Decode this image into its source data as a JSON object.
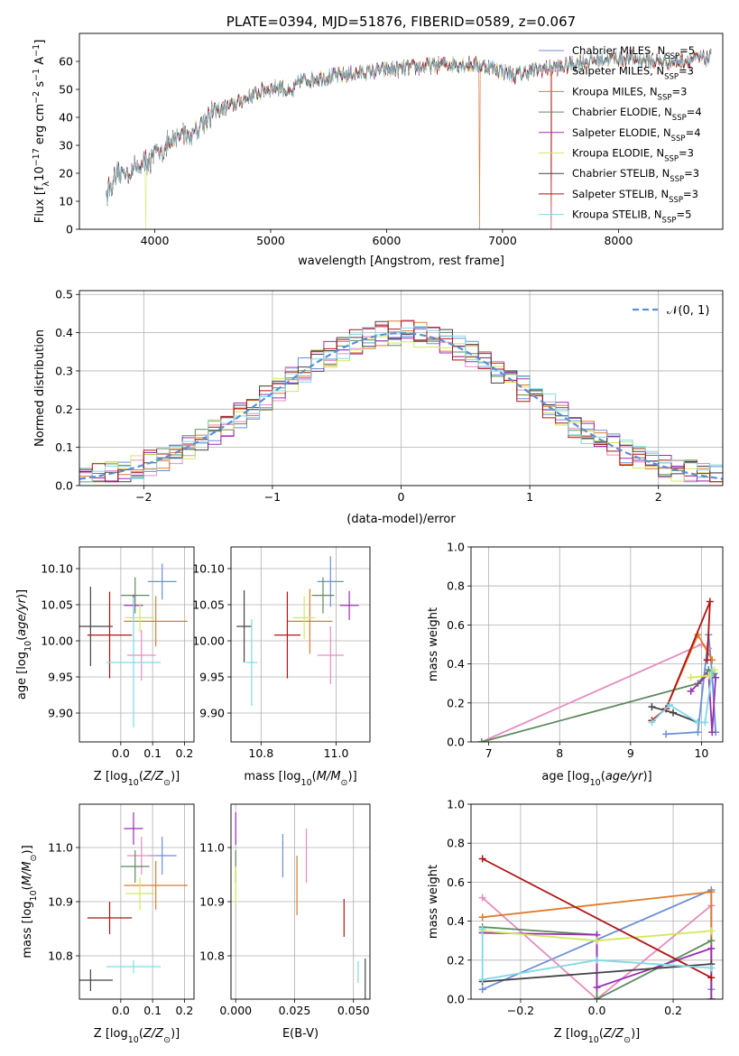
{
  "colors": {
    "Chabrier MILES": "#6b8fd6",
    "Salpeter MILES": "#e58cc0",
    "Kroupa MILES": "#e07b2a",
    "Chabrier ELODIE": "#5e8a5e",
    "Salpeter ELODIE": "#9a2fb2",
    "Kroupa ELODIE": "#d4e85a",
    "Chabrier STELIB": "#444444",
    "Salpeter STELIB": "#b01515",
    "Kroupa STELIB": "#7fd9e8",
    "normal": "#5b8fd4"
  },
  "chart_data": [
    {
      "type": "line",
      "title": "PLATE=0394, MJD=51876, FIBERID=0589, z=0.067",
      "xlabel": "wavelength [Angstrom, rest frame]",
      "ylabel": "Flux [f_λ 10^-17 erg cm^-2 s^-1 A^-1]",
      "xlim": [
        3350,
        8900
      ],
      "ylim": [
        0,
        70
      ],
      "xticks": [
        4000,
        5000,
        6000,
        7000,
        8000
      ],
      "yticks": [
        0,
        10,
        20,
        30,
        40,
        50,
        60
      ],
      "legend_position": "upper-right",
      "legend": [
        {
          "series": "Chabrier MILES",
          "prefix": "Chabrier MILES, N",
          "sub": "SSP",
          "suffix": "=5"
        },
        {
          "series": "Salpeter MILES",
          "prefix": "Salpeter MILES, N",
          "sub": "SSP",
          "suffix": "=3"
        },
        {
          "series": "Kroupa MILES",
          "prefix": "Kroupa MILES, N",
          "sub": "SSP",
          "suffix": "=3"
        },
        {
          "series": "Chabrier ELODIE",
          "prefix": "Chabrier ELODIE, N",
          "sub": "SSP",
          "suffix": "=4"
        },
        {
          "series": "Salpeter ELODIE",
          "prefix": "Salpeter ELODIE, N",
          "sub": "SSP",
          "suffix": "=4"
        },
        {
          "series": "Kroupa ELODIE",
          "prefix": "Kroupa ELODIE, N",
          "sub": "SSP",
          "suffix": "=3"
        },
        {
          "series": "Chabrier STELIB",
          "prefix": "Chabrier STELIB, N",
          "sub": "SSP",
          "suffix": "=3"
        },
        {
          "series": "Salpeter STELIB",
          "prefix": "Salpeter STELIB, N",
          "sub": "SSP",
          "suffix": "=3"
        },
        {
          "series": "Kroupa STELIB",
          "prefix": "Kroupa STELIB, N",
          "sub": "SSP",
          "suffix": "=5"
        }
      ],
      "continuum": [
        [
          3580,
          13
        ],
        [
          3700,
          20
        ],
        [
          3800,
          21
        ],
        [
          3900,
          24
        ],
        [
          3950,
          24
        ],
        [
          4000,
          27
        ],
        [
          4150,
          31
        ],
        [
          4250,
          35
        ],
        [
          4300,
          33
        ],
        [
          4400,
          38
        ],
        [
          4500,
          42
        ],
        [
          4650,
          44
        ],
        [
          4800,
          47
        ],
        [
          4950,
          50
        ],
        [
          5100,
          51
        ],
        [
          5175,
          48
        ],
        [
          5250,
          53
        ],
        [
          5400,
          54
        ],
        [
          5600,
          55
        ],
        [
          5800,
          56
        ],
        [
          6000,
          57
        ],
        [
          6300,
          58
        ],
        [
          6500,
          59
        ],
        [
          6700,
          59
        ],
        [
          6900,
          58
        ],
        [
          7100,
          55
        ],
        [
          7300,
          57
        ],
        [
          7500,
          58
        ],
        [
          7700,
          60
        ],
        [
          7900,
          61
        ],
        [
          8100,
          61
        ],
        [
          8300,
          60
        ],
        [
          8500,
          60
        ],
        [
          8700,
          61
        ],
        [
          8800,
          61
        ]
      ],
      "dropouts": [
        {
          "series": "Kroupa ELODIE",
          "x": 3920,
          "to": 0
        },
        {
          "series": "Kroupa MILES",
          "x": 6800,
          "to": 0
        },
        {
          "series": "Salpeter MILES",
          "x": 6800,
          "to": 0
        },
        {
          "series": "Salpeter STELIB",
          "x": 7420,
          "to": 0
        }
      ]
    },
    {
      "type": "histogram",
      "xlabel": "(data-model)/error",
      "ylabel": "Normed distribution",
      "xlim": [
        -2.5,
        2.5
      ],
      "ylim": [
        0,
        0.51
      ],
      "xticks": [
        -2,
        -1,
        0,
        1,
        2
      ],
      "yticks": [
        0.0,
        0.1,
        0.2,
        0.3,
        0.4,
        0.5
      ],
      "bin_width": 0.1,
      "bin_start": -2.5,
      "normal_label": "𝒩(0, 1)",
      "legend_position": "upper-right",
      "series_order": [
        "Chabrier MILES",
        "Salpeter MILES",
        "Kroupa MILES",
        "Chabrier ELODIE",
        "Salpeter ELODIE",
        "Kroupa ELODIE",
        "Chabrier STELIB",
        "Salpeter STELIB",
        "Kroupa STELIB"
      ]
    },
    {
      "type": "errorbar",
      "xlabel": "Z [log10(Z/Z⊙)]",
      "ylabel": "age [log10(age/yr)]",
      "xlim": [
        -0.13,
        0.23
      ],
      "ylim": [
        9.86,
        10.13
      ],
      "xticks": [
        0.0,
        0.1,
        0.2
      ],
      "yticks": [
        9.9,
        9.95,
        10.0,
        10.05,
        10.1
      ],
      "points": [
        {
          "series": "Chabrier MILES",
          "x": 0.13,
          "xerr": 0.045,
          "y": 10.082,
          "yerr": 0.025
        },
        {
          "series": "Salpeter MILES",
          "x": 0.065,
          "xerr": 0.045,
          "y": 9.98,
          "yerr": 0.035
        },
        {
          "series": "Kroupa MILES",
          "x": 0.11,
          "xerr": 0.1,
          "y": 10.027,
          "yerr": 0.035
        },
        {
          "series": "Chabrier ELODIE",
          "x": 0.045,
          "xerr": 0.045,
          "y": 10.063,
          "yerr": 0.025
        },
        {
          "series": "Salpeter ELODIE",
          "x": 0.04,
          "xerr": 0.03,
          "y": 10.049,
          "yerr": 0.015
        },
        {
          "series": "Kroupa ELODIE",
          "x": 0.06,
          "xerr": 0.045,
          "y": 10.032,
          "yerr": 0.02
        },
        {
          "series": "Chabrier STELIB",
          "x": -0.095,
          "xerr": 0.07,
          "y": 10.02,
          "yerr": 0.055
        },
        {
          "series": "Salpeter STELIB",
          "x": -0.035,
          "xerr": 0.07,
          "y": 10.008,
          "yerr": 0.06
        },
        {
          "series": "Kroupa STELIB",
          "x": 0.04,
          "xerr": 0.085,
          "y": 9.97,
          "yerr": 0.09
        }
      ]
    },
    {
      "type": "errorbar",
      "xlabel": "mass [log10(M/M⊙)]",
      "xlim": [
        10.72,
        11.09
      ],
      "ylim": [
        9.86,
        10.13
      ],
      "xticks": [
        10.8,
        11.0
      ],
      "yticks": [
        9.9,
        9.95,
        10.0,
        10.05,
        10.1
      ],
      "points": [
        {
          "series": "Chabrier MILES",
          "x": 10.985,
          "xerr": 0.035,
          "y": 10.082,
          "yerr": 0.035
        },
        {
          "series": "Salpeter MILES",
          "x": 10.985,
          "xerr": 0.035,
          "y": 9.98,
          "yerr": 0.04
        },
        {
          "series": "Kroupa MILES",
          "x": 10.93,
          "xerr": 0.06,
          "y": 10.027,
          "yerr": 0.045
        },
        {
          "series": "Chabrier ELODIE",
          "x": 10.965,
          "xerr": 0.03,
          "y": 10.063,
          "yerr": 0.025
        },
        {
          "series": "Salpeter ELODIE",
          "x": 11.035,
          "xerr": 0.025,
          "y": 10.049,
          "yerr": 0.02
        },
        {
          "series": "Kroupa ELODIE",
          "x": 10.915,
          "xerr": 0.03,
          "y": 10.032,
          "yerr": 0.03
        },
        {
          "series": "Chabrier STELIB",
          "x": 10.755,
          "xerr": 0.02,
          "y": 10.02,
          "yerr": 0.05
        },
        {
          "series": "Salpeter STELIB",
          "x": 10.87,
          "xerr": 0.035,
          "y": 10.008,
          "yerr": 0.06
        },
        {
          "series": "Kroupa STELIB",
          "x": 10.775,
          "xerr": 0.015,
          "y": 9.97,
          "yerr": 0.06
        }
      ]
    },
    {
      "type": "line",
      "xlabel": "age [log10(age/yr)]",
      "ylabel": "mass weight",
      "xlim": [
        6.75,
        10.3
      ],
      "ylim": [
        0,
        1
      ],
      "xticks": [
        7,
        8,
        9,
        10
      ],
      "yticks": [
        0.0,
        0.2,
        0.4,
        0.6,
        0.8,
        1.0
      ],
      "series": [
        {
          "name": "Chabrier MILES",
          "x": [
            9.5,
            9.95,
            10.1,
            10.15,
            10.2
          ],
          "y": [
            0.04,
            0.05,
            0.55,
            0.35,
            0.05
          ]
        },
        {
          "name": "Salpeter MILES",
          "x": [
            6.9,
            10.0,
            10.1
          ],
          "y": [
            0.0,
            0.5,
            0.48
          ]
        },
        {
          "name": "Kroupa MILES",
          "x": [
            9.5,
            9.95,
            10.15
          ],
          "y": [
            0.17,
            0.55,
            0.42
          ]
        },
        {
          "name": "Chabrier ELODIE",
          "x": [
            6.9,
            9.95,
            10.1,
            10.18
          ],
          "y": [
            0.0,
            0.3,
            0.37,
            0.35
          ]
        },
        {
          "name": "Salpeter ELODIE",
          "x": [
            9.85,
            10.1,
            10.15,
            10.2
          ],
          "y": [
            0.26,
            0.35,
            0.05,
            0.33
          ]
        },
        {
          "name": "Kroupa ELODIE",
          "x": [
            9.85,
            10.1,
            10.18
          ],
          "y": [
            0.33,
            0.34,
            0.37
          ]
        },
        {
          "name": "Chabrier STELIB",
          "x": [
            9.3,
            9.6,
            9.95
          ],
          "y": [
            0.18,
            0.15,
            0.1
          ]
        },
        {
          "name": "Salpeter STELIB",
          "x": [
            9.3,
            9.5,
            10.12,
            10.08
          ],
          "y": [
            0.11,
            0.17,
            0.72,
            0.42
          ]
        },
        {
          "name": "Kroupa STELIB",
          "x": [
            9.3,
            9.55,
            9.95,
            10.05,
            10.15
          ],
          "y": [
            0.1,
            0.19,
            0.1,
            0.1,
            0.36
          ]
        }
      ]
    },
    {
      "type": "errorbar",
      "xlabel": "Z [log10(Z/Z⊙)]",
      "ylabel": "mass [log10(M/M⊙)]",
      "xlim": [
        -0.13,
        0.23
      ],
      "ylim": [
        10.72,
        11.08
      ],
      "xticks": [
        0.0,
        0.1,
        0.2
      ],
      "yticks": [
        10.8,
        10.9,
        11.0
      ],
      "points": [
        {
          "series": "Chabrier MILES",
          "x": 0.13,
          "xerr": 0.045,
          "y": 10.985,
          "yerr": 0.035
        },
        {
          "series": "Salpeter MILES",
          "x": 0.065,
          "xerr": 0.045,
          "y": 10.985,
          "yerr": 0.035
        },
        {
          "series": "Kroupa MILES",
          "x": 0.11,
          "xerr": 0.1,
          "y": 10.93,
          "yerr": 0.045
        },
        {
          "series": "Chabrier ELODIE",
          "x": 0.045,
          "xerr": 0.045,
          "y": 10.965,
          "yerr": 0.03
        },
        {
          "series": "Salpeter ELODIE",
          "x": 0.04,
          "xerr": 0.03,
          "y": 11.035,
          "yerr": 0.03
        },
        {
          "series": "Kroupa ELODIE",
          "x": 0.06,
          "xerr": 0.045,
          "y": 10.915,
          "yerr": 0.03
        },
        {
          "series": "Chabrier STELIB",
          "x": -0.095,
          "xerr": 0.07,
          "y": 10.755,
          "yerr": 0.02
        },
        {
          "series": "Salpeter STELIB",
          "x": -0.035,
          "xerr": 0.07,
          "y": 10.87,
          "yerr": 0.03
        },
        {
          "series": "Kroupa STELIB",
          "x": 0.04,
          "xerr": 0.085,
          "y": 10.78,
          "yerr": 0.012
        }
      ]
    },
    {
      "type": "errorbar",
      "xlabel": "E(B-V)",
      "xlim": [
        -0.002,
        0.057
      ],
      "ylim": [
        10.72,
        11.08
      ],
      "xticks": [
        0.0,
        0.025,
        0.05
      ],
      "xticklabels": [
        "0.000",
        "0.025",
        "0.050"
      ],
      "yticks": [
        10.8,
        10.9,
        11.0
      ],
      "points": [
        {
          "series": "Chabrier MILES",
          "x": 0.02,
          "y": 10.985,
          "yerr": 0.04
        },
        {
          "series": "Salpeter MILES",
          "x": 0.03,
          "y": 10.985,
          "yerr": 0.05
        },
        {
          "series": "Kroupa MILES",
          "x": 0.026,
          "y": 10.93,
          "yerr": 0.055
        },
        {
          "series": "Chabrier ELODIE",
          "x": 0.0,
          "y": 10.965,
          "yerr": 0.03
        },
        {
          "series": "Salpeter ELODIE",
          "x": 0.0,
          "y": 11.035,
          "yerr": 0.03
        },
        {
          "series": "Kroupa ELODIE",
          "x": 0.0,
          "y": 10.93,
          "yerr": 0.035
        },
        {
          "series": "Chabrier STELIB",
          "x": 0.055,
          "y": 10.755,
          "yerr": 0.04
        },
        {
          "series": "Salpeter STELIB",
          "x": 0.046,
          "y": 10.87,
          "yerr": 0.035
        },
        {
          "series": "Kroupa STELIB",
          "x": 0.052,
          "y": 10.77,
          "yerr": 0.02
        }
      ]
    },
    {
      "type": "line",
      "xlabel": "Z [log10(Z/Z⊙)]",
      "ylabel": "mass weight",
      "xlim": [
        -0.33,
        0.33
      ],
      "ylim": [
        0,
        1
      ],
      "xticks": [
        -0.2,
        0.0,
        0.2
      ],
      "yticks": [
        0.0,
        0.2,
        0.4,
        0.6,
        0.8,
        1.0
      ],
      "series": [
        {
          "name": "Chabrier MILES",
          "x": [
            -0.3,
            0.3,
            0.3
          ],
          "y": [
            0.05,
            0.56,
            0.05
          ]
        },
        {
          "name": "Salpeter MILES",
          "x": [
            -0.3,
            0.0,
            0.3,
            0.3
          ],
          "y": [
            0.52,
            0.0,
            0.48,
            0.0
          ]
        },
        {
          "name": "Kroupa MILES",
          "x": [
            -0.3,
            0.3,
            0.3
          ],
          "y": [
            0.42,
            0.55,
            0.0
          ]
        },
        {
          "name": "Chabrier ELODIE",
          "x": [
            -0.3,
            0.0,
            0.0,
            0.3
          ],
          "y": [
            0.37,
            0.33,
            0.0,
            0.3
          ]
        },
        {
          "name": "Salpeter ELODIE",
          "x": [
            -0.3,
            0.0,
            0.0,
            0.3,
            0.3
          ],
          "y": [
            0.34,
            0.33,
            0.06,
            0.26,
            0.0
          ]
        },
        {
          "name": "Kroupa ELODIE",
          "x": [
            -0.3,
            0.0,
            0.3
          ],
          "y": [
            0.35,
            0.3,
            0.35
          ]
        },
        {
          "name": "Chabrier STELIB",
          "x": [
            -0.3,
            0.3
          ],
          "y": [
            0.09,
            0.18
          ]
        },
        {
          "name": "Salpeter STELIB",
          "x": [
            -0.3,
            0.3
          ],
          "y": [
            0.72,
            0.11
          ]
        },
        {
          "name": "Kroupa STELIB",
          "x": [
            -0.3,
            -0.3,
            0.0,
            0.3
          ],
          "y": [
            0.36,
            0.1,
            0.2,
            0.16
          ]
        }
      ]
    }
  ]
}
